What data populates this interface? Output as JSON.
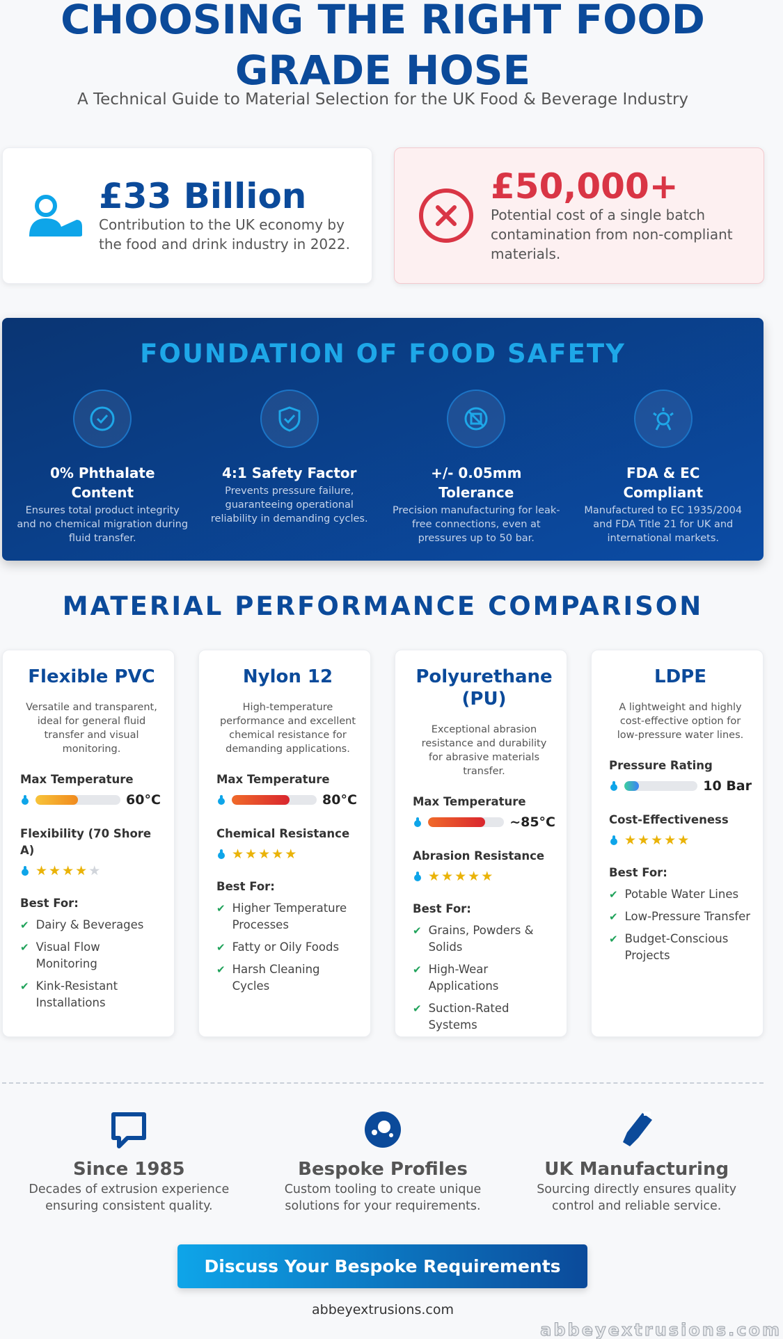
{
  "header": {
    "title": "CHOOSING THE RIGHT FOOD GRADE HOSE",
    "subtitle": "A Technical Guide to Material Selection for the UK Food & Beverage Industry"
  },
  "stats": [
    {
      "value": "£33 Billion",
      "text": "Contribution to the UK economy by the food and drink industry in 2022."
    },
    {
      "value": "£50,000+",
      "text": "Potential cost of a single batch contamination from non-compliant materials."
    }
  ],
  "foundation": {
    "title": "FOUNDATION OF FOOD SAFETY",
    "items": [
      {
        "title": "0% Phthalate Content",
        "text": "Ensures total product integrity and no chemical migration during fluid transfer."
      },
      {
        "title": "4:1 Safety Factor",
        "text": "Prevents pressure failure, guaranteeing operational reliability in demanding cycles."
      },
      {
        "title": "+/- 0.05mm Tolerance",
        "text": "Precision manufacturing for leak-free connections, even at pressures up to 50 bar."
      },
      {
        "title": "FDA & EC Compliant",
        "text": "Manufactured to EC 1935/2004 and FDA Title 21 for UK and international markets."
      }
    ]
  },
  "comparison": {
    "title": "MATERIAL PERFORMANCE COMPARISON",
    "materials": [
      {
        "name": "Flexible PVC",
        "description": "Versatile and transparent, ideal for general fluid transfer and visual monitoring.",
        "metrics": [
          {
            "label": "Max Temperature",
            "value": "60°C",
            "level": 50
          },
          {
            "label": "Flexibility (70 Shore A)",
            "rating": 4
          }
        ],
        "best_for_label": "Best For:",
        "best_for": [
          "Dairy & Beverages",
          "Visual Flow Monitoring",
          "Kink-Resistant Installations"
        ]
      },
      {
        "name": "Nylon 12",
        "description": "High-temperature performance and excellent chemical resistance for demanding applications.",
        "metrics": [
          {
            "label": "Max Temperature",
            "value": "80°C",
            "level": 68
          },
          {
            "label": "Chemical Resistance",
            "rating": 5
          }
        ],
        "best_for_label": "Best For:",
        "best_for": [
          "Higher Temperature Processes",
          "Fatty or Oily Foods",
          "Harsh Cleaning Cycles"
        ]
      },
      {
        "name": "Polyurethane (PU)",
        "description": "Exceptional abrasion resistance and durability for abrasive materials transfer.",
        "metrics": [
          {
            "label": "Max Temperature",
            "value": "~85°C",
            "level": 75
          },
          {
            "label": "Abrasion Resistance",
            "rating": 5
          }
        ],
        "best_for_label": "Best For:",
        "best_for": [
          "Grains, Powders & Solids",
          "High-Wear Applications",
          "Suction-Rated Systems"
        ]
      },
      {
        "name": "LDPE",
        "description": "A lightweight and highly cost-effective option for low-pressure water lines.",
        "metrics": [
          {
            "label": "Pressure Rating",
            "value": "10 Bar",
            "level": 20
          },
          {
            "label": "Cost-Effectiveness",
            "rating": 5
          }
        ],
        "best_for_label": "Best For:",
        "best_for": [
          "Potable Water Lines",
          "Low-Pressure Transfer",
          "Budget-Conscious Projects"
        ]
      }
    ]
  },
  "features": [
    {
      "title": "Since 1985",
      "text": "Decades of extrusion experience ensuring consistent quality."
    },
    {
      "title": "Bespoke Profiles",
      "text": "Custom tooling to create unique solutions for your requirements."
    },
    {
      "title": "UK Manufacturing",
      "text": "Sourcing directly ensures quality control and reliable service."
    }
  ],
  "cta": {
    "button": "Discuss Your Bespoke Requirements",
    "url": "abbeyextrusions.com"
  },
  "watermark": "abbeyextrusions.com"
}
